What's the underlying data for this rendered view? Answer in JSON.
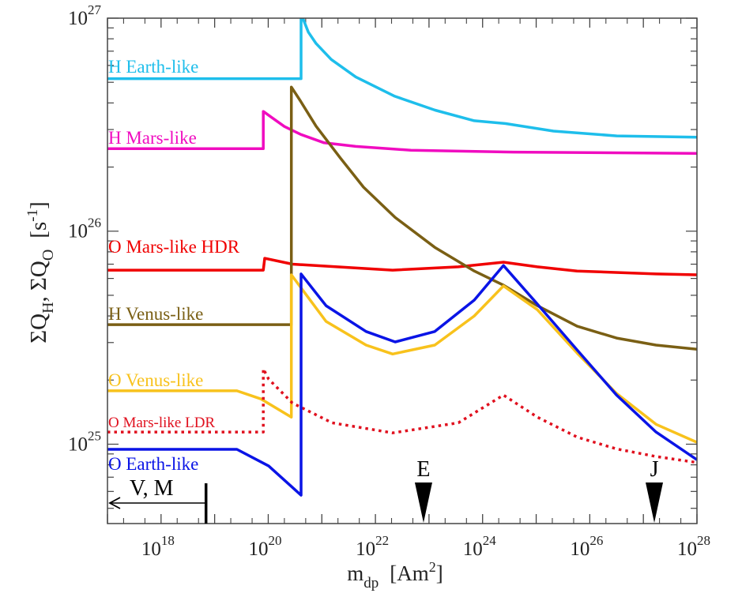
{
  "chart_data": {
    "type": "line",
    "title": "",
    "xlabel": {
      "main": "m",
      "sub": "dp",
      "unit_open": "[Am",
      "unit_sup": "2",
      "unit_close": "]"
    },
    "ylabel": {
      "p1": "ΣQ",
      "s1": "H",
      "sep": ", ΣQ",
      "s2": "O",
      "unit_open": "[s",
      "unit_sup": "-1",
      "unit_close": "]"
    },
    "x_scale": "log",
    "y_scale": "log",
    "xlim": [
      1e+17,
      1e+28
    ],
    "ylim": [
      4.24e+24,
      1e+27
    ],
    "x_ticks": [
      {
        "base": "10",
        "exp": "18",
        "value": 1e+18
      },
      {
        "base": "10",
        "exp": "20",
        "value": 1e+20
      },
      {
        "base": "10",
        "exp": "22",
        "value": 1e+22
      },
      {
        "base": "10",
        "exp": "24",
        "value": 1e+24
      },
      {
        "base": "10",
        "exp": "26",
        "value": 1e+26
      },
      {
        "base": "10",
        "exp": "28",
        "value": 1e+28
      }
    ],
    "y_ticks": [
      {
        "base": "10",
        "exp": "25",
        "value": 1e+25
      },
      {
        "base": "10",
        "exp": "26",
        "value": 1e+26
      },
      {
        "base": "10",
        "exp": "27",
        "value": 1e+27
      }
    ],
    "grid": false,
    "legend": "inline labels at left",
    "series": [
      {
        "name": "H Earth-like",
        "color": "#1EBEEB",
        "dash": "solid",
        "points": [
          [
            1e+17,
            5.2e+26
          ],
          [
            4.1e+20,
            5.2e+26
          ],
          [
            4.1e+20,
            1.05e+27
          ],
          [
            5.6e+20,
            8.6e+26
          ],
          [
            7.8e+20,
            7.6e+26
          ],
          [
            1.5e+21,
            6.4e+26
          ],
          [
            4.3e+21,
            5.3e+26
          ],
          [
            2.3e+22,
            4.3e+26
          ],
          [
            1.3e+23,
            3.7e+26
          ],
          [
            7e+23,
            3.3e+26
          ],
          [
            2.7e+24,
            3.2e+26
          ],
          [
            2.1e+25,
            2.95e+26
          ],
          [
            3.2e+26,
            2.8e+26
          ],
          [
            1e+28,
            2.76e+26
          ]
        ]
      },
      {
        "name": "H Mars-like",
        "color": "#F00CC0",
        "dash": "solid",
        "points": [
          [
            1e+17,
            2.44e+26
          ],
          [
            8.1e+19,
            2.44e+26
          ],
          [
            8.1e+19,
            3.65e+26
          ],
          [
            1.2e+20,
            3.4e+26
          ],
          [
            2e+20,
            3.1e+26
          ],
          [
            4e+20,
            2.85e+26
          ],
          [
            1.1e+21,
            2.6e+26
          ],
          [
            4.3e+21,
            2.5e+26
          ],
          [
            4.6e+22,
            2.4e+26
          ],
          [
            3.8e+24,
            2.35e+26
          ],
          [
            1e+28,
            2.32e+26
          ]
        ]
      },
      {
        "name": "O Mars-like HDR",
        "color": "#F00000",
        "dash": "solid",
        "points": [
          [
            1e+17,
            6.56e+25
          ],
          [
            8.1e+19,
            6.56e+25
          ],
          [
            8.6e+19,
            7.46e+25
          ],
          [
            2.83e+20,
            7e+25
          ],
          [
            2.1e+22,
            6.56e+25
          ],
          [
            3.54e+23,
            6.8e+25
          ],
          [
            2.45e+24,
            7.15e+25
          ],
          [
            1.05e+25,
            6.8e+25
          ],
          [
            5.8e+25,
            6.5e+25
          ],
          [
            1.72e+27,
            6.3e+25
          ],
          [
            1e+28,
            6.24e+25
          ]
        ]
      },
      {
        "name": "H Venus-like",
        "color": "#7A5F14",
        "dash": "solid",
        "points": [
          [
            1e+17,
            3.64e+25
          ],
          [
            2.7e+20,
            3.64e+25
          ],
          [
            2.7e+20,
            4.75e+26
          ],
          [
            4e+20,
            4.08e+26
          ],
          [
            7.8e+20,
            3.11e+26
          ],
          [
            2.2e+21,
            2.21e+26
          ],
          [
            6e+21,
            1.61e+26
          ],
          [
            2.34e+22,
            1.16e+26
          ],
          [
            1.28e+23,
            8.4e+25
          ],
          [
            7e+23,
            6.5e+25
          ],
          [
            2.45e+24,
            5.58e+25
          ],
          [
            1.05e+25,
            4.47e+25
          ],
          [
            5.8e+25,
            3.58e+25
          ],
          [
            3.16e+26,
            3.15e+25
          ],
          [
            1.72e+27,
            2.92e+25
          ],
          [
            1e+28,
            2.79e+25
          ]
        ]
      },
      {
        "name": "O Venus-like",
        "color": "#F8C21C",
        "dash": "solid",
        "points": [
          [
            1e+17,
            1.78e+25
          ],
          [
            2.6e+19,
            1.78e+25
          ],
          [
            7.3e+19,
            1.63e+25
          ],
          [
            2.7e+20,
            1.34e+25
          ],
          [
            2.7e+20,
            6.24e+25
          ],
          [
            1.2e+21,
            3.77e+25
          ],
          [
            6.7e+21,
            2.92e+25
          ],
          [
            2.1e+22,
            2.65e+25
          ],
          [
            1.28e+23,
            2.92e+25
          ],
          [
            7e+23,
            4e+25
          ],
          [
            2.45e+24,
            5.53e+25
          ],
          [
            1.05e+25,
            4.28e+25
          ],
          [
            5.8e+25,
            2.68e+25
          ],
          [
            3.16e+26,
            1.73e+25
          ],
          [
            1.72e+27,
            1.24e+25
          ],
          [
            1e+28,
            1.02e+25
          ]
        ]
      },
      {
        "name": "O Mars-like LDR",
        "color": "#E0101E",
        "dash": "dotted",
        "points": [
          [
            1e+17,
            1.14e+25
          ],
          [
            8.1e+19,
            1.14e+25
          ],
          [
            8.1e+19,
            2.26e+25
          ],
          [
            1.02e+20,
            2.02e+25
          ],
          [
            2.83e+20,
            1.56e+25
          ],
          [
            1.55e+21,
            1.26e+25
          ],
          [
            2.1e+22,
            1.13e+25
          ],
          [
            3.54e+23,
            1.26e+25
          ],
          [
            2.45e+24,
            1.7e+25
          ],
          [
            1.05e+25,
            1.34e+25
          ],
          [
            5.8e+25,
            1.08e+25
          ],
          [
            3.16e+26,
            9.5e+24
          ],
          [
            1.72e+27,
            8.75e+24
          ],
          [
            1e+28,
            8.2e+24
          ]
        ]
      },
      {
        "name": "O Earth-like",
        "color": "#0A14E6",
        "dash": "solid",
        "points": [
          [
            1e+17,
            9.46e+24
          ],
          [
            2.6e+19,
            9.46e+24
          ],
          [
            1.02e+20,
            7.9e+24
          ],
          [
            4.1e+20,
            5.76e+24
          ],
          [
            4.1e+20,
            6.3e+25
          ],
          [
            1.2e+21,
            4.47e+25
          ],
          [
            6.7e+21,
            3.38e+25
          ],
          [
            2.34e+22,
            3.02e+25
          ],
          [
            1.28e+23,
            3.38e+25
          ],
          [
            7e+23,
            4.75e+25
          ],
          [
            2.45e+24,
            6.9e+25
          ],
          [
            1.05e+25,
            4.55e+25
          ],
          [
            5.8e+25,
            2.77e+25
          ],
          [
            3.16e+26,
            1.7e+25
          ],
          [
            1.72e+27,
            1.14e+25
          ],
          [
            1e+28,
            8.45e+24
          ]
        ]
      }
    ],
    "series_label_positions": "left edge, above each line",
    "annotations": [
      {
        "label": "E",
        "x": 7.9e+22,
        "kind": "down-arrow"
      },
      {
        "label": "J",
        "x": 1.6e+27,
        "kind": "down-arrow"
      },
      {
        "label": "V, M",
        "x": 6.9e+18,
        "kind": "upper-bound-left-arrow"
      }
    ]
  }
}
